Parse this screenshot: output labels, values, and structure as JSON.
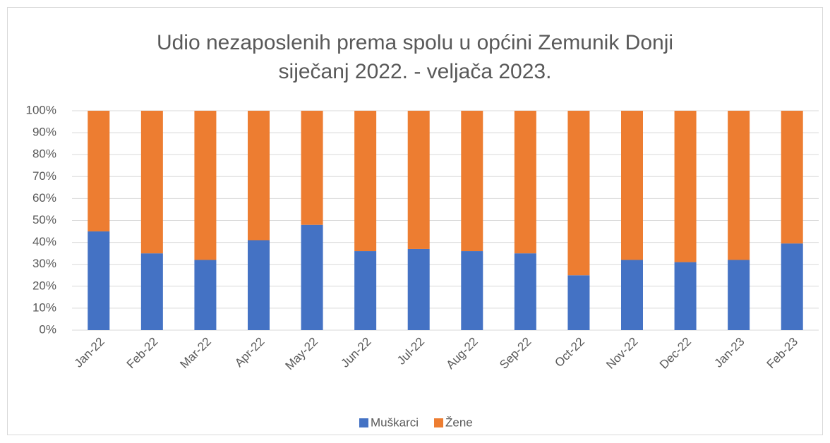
{
  "chart_data": {
    "type": "stacked_bar",
    "title": "Udio nezaposlenih prema spolu u općini Zemunik Donji",
    "subtitle": "siječanj 2022. - veljača 2023.",
    "categories": [
      "Jan-22",
      "Feb-22",
      "Mar-22",
      "Apr-22",
      "May-22",
      "Jun-22",
      "Jul-22",
      "Aug-22",
      "Sep-22",
      "Oct-22",
      "Nov-22",
      "Dec-22",
      "Jan-23",
      "Feb-23"
    ],
    "series": [
      {
        "name": "Muškarci",
        "color": "#4472c4",
        "values": [
          45,
          35,
          32,
          41,
          48,
          36,
          37,
          36,
          35,
          25,
          32,
          31,
          32,
          39.5
        ]
      },
      {
        "name": "Žene",
        "color": "#ed7d31",
        "values": [
          55,
          65,
          68,
          59,
          52,
          64,
          63,
          64,
          65,
          75,
          68,
          69,
          68,
          60.5
        ]
      }
    ],
    "ylim": [
      0,
      100
    ],
    "yticks": [
      {
        "value": 0,
        "label": "0%"
      },
      {
        "value": 10,
        "label": "10%"
      },
      {
        "value": 20,
        "label": "20%"
      },
      {
        "value": 30,
        "label": "30%"
      },
      {
        "value": 40,
        "label": "40%"
      },
      {
        "value": 50,
        "label": "50%"
      },
      {
        "value": 60,
        "label": "60%"
      },
      {
        "value": 70,
        "label": "70%"
      },
      {
        "value": 80,
        "label": "80%"
      },
      {
        "value": 90,
        "label": "90%"
      },
      {
        "value": 100,
        "label": "100%"
      }
    ],
    "grid": true,
    "legend": "bottom"
  }
}
